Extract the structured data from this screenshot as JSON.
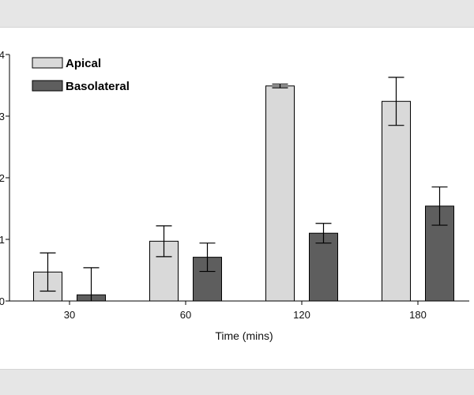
{
  "chart_data": {
    "type": "bar",
    "categories": [
      "30",
      "60",
      "120",
      "180"
    ],
    "series": [
      {
        "name": "Apical",
        "values": [
          0.47,
          0.97,
          3.49,
          3.24
        ],
        "error": [
          0.31,
          0.25,
          0.03,
          0.39
        ],
        "color": "#d9d9d9"
      },
      {
        "name": "Basolateral",
        "values": [
          0.1,
          0.71,
          1.1,
          1.54
        ],
        "error": [
          0.44,
          0.23,
          0.16,
          0.31
        ],
        "color": "#5e5e5e"
      }
    ],
    "title": "",
    "xlabel": "Time (mins)",
    "ylabel": "",
    "ylim": [
      0,
      4
    ],
    "yticks": [
      "0",
      "1",
      "2",
      "3",
      "4"
    ],
    "grid": false,
    "legend_position": "top-left"
  }
}
